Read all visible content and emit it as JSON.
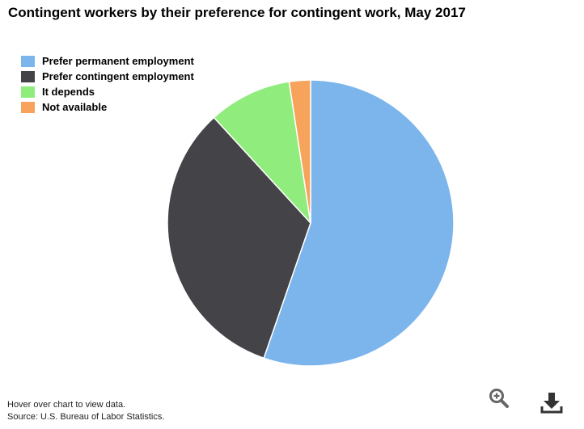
{
  "chart_data": {
    "type": "pie",
    "title": "Contingent workers by their preference for contingent work, May 2017",
    "categories": [
      "Prefer permanent employment",
      "Prefer contingent employment",
      "It depends",
      "Not available"
    ],
    "values": [
      55.3,
      32.9,
      9.4,
      2.4
    ],
    "colors": [
      "#7cb5ec",
      "#434348",
      "#90ed7d",
      "#f7a35c"
    ],
    "legend_position": "top-left",
    "start_angle_deg": 0,
    "direction": "clockwise"
  },
  "footer": {
    "hover_note": "Hover over chart to view data.",
    "source": "Source: U.S. Bureau of Labor Statistics."
  },
  "tools": {
    "zoom_icon": "zoom-in-icon",
    "download_icon": "download-icon"
  }
}
